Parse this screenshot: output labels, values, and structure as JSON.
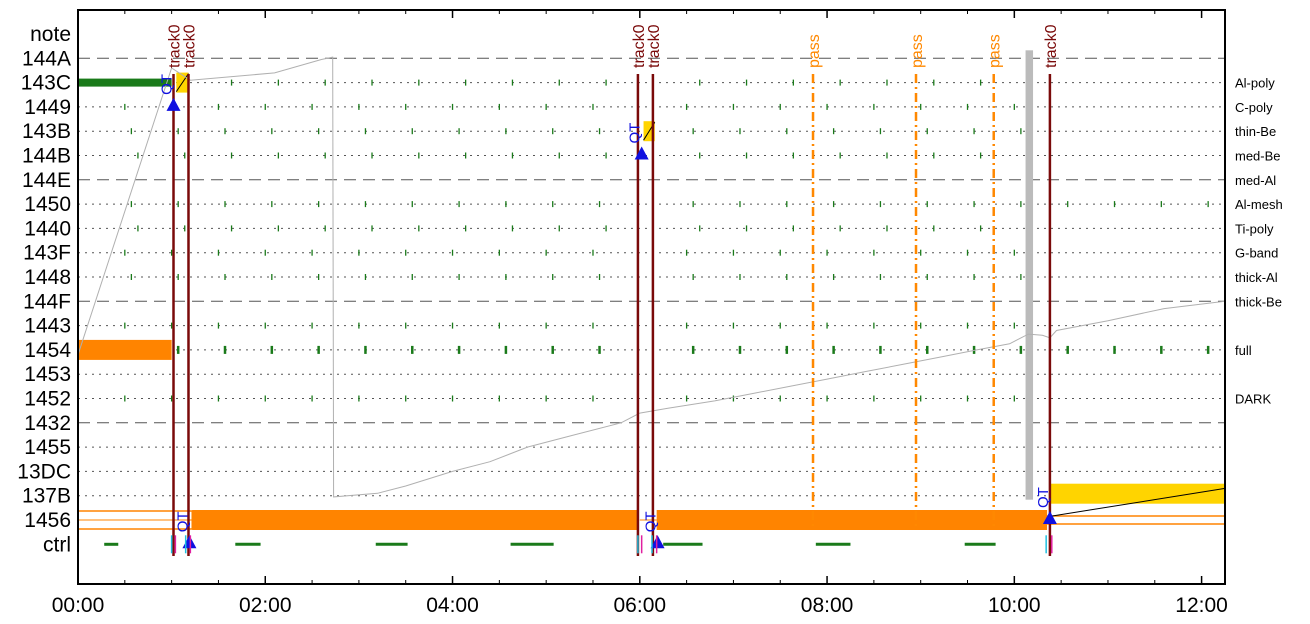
{
  "chart_data": {
    "type": "timeline",
    "x_ticks": [
      "00:00",
      "02:00",
      "04:00",
      "06:00",
      "08:00",
      "10:00",
      "12:00"
    ],
    "x_range_hours": [
      0,
      12.25
    ],
    "rows": [
      "note",
      "144A",
      "143C",
      "1449",
      "143B",
      "144B",
      "144E",
      "1450",
      "1440",
      "143F",
      "1448",
      "144F",
      "1443",
      "1454",
      "1453",
      "1452",
      "1432",
      "1455",
      "13DC",
      "137B",
      "1456",
      "ctrl"
    ],
    "dashed_rows": [
      "144A",
      "144E",
      "144F",
      "1432"
    ],
    "dotted_rows": [
      "143C",
      "1449",
      "143B",
      "144B",
      "1450",
      "1440",
      "143F",
      "1448",
      "1443",
      "1454",
      "1453",
      "1452",
      "1455",
      "13DC",
      "137B"
    ],
    "right_labels": [
      {
        "row": "143C",
        "text": "Al-poly"
      },
      {
        "row": "1449",
        "text": "C-poly"
      },
      {
        "row": "143B",
        "text": "thin-Be"
      },
      {
        "row": "144B",
        "text": "med-Be"
      },
      {
        "row": "144E",
        "text": "med-Al"
      },
      {
        "row": "1450",
        "text": "Al-mesh"
      },
      {
        "row": "1440",
        "text": "Ti-poly"
      },
      {
        "row": "143F",
        "text": "G-band"
      },
      {
        "row": "1448",
        "text": "thick-Al"
      },
      {
        "row": "144F",
        "text": "thick-Be"
      },
      {
        "row": "1454",
        "text": "full"
      },
      {
        "row": "1452",
        "text": "DARK"
      }
    ],
    "track_lines": [
      {
        "t": 1.02,
        "label": "track0"
      },
      {
        "t": 1.18,
        "label": "track0"
      },
      {
        "t": 5.98,
        "label": "track0"
      },
      {
        "t": 6.14,
        "label": "track0"
      },
      {
        "t": 10.38,
        "label": "track0"
      }
    ],
    "pass_lines": [
      {
        "t": 7.85,
        "label": "pass"
      },
      {
        "t": 8.95,
        "label": "pass"
      },
      {
        "t": 9.78,
        "label": "pass"
      }
    ],
    "qt_markers": [
      {
        "t": 1.02,
        "row": "1449",
        "label": "QT"
      },
      {
        "t": 1.19,
        "row": "ctrl",
        "label": "QT"
      },
      {
        "t": 6.02,
        "row": "144B",
        "label": "QT"
      },
      {
        "t": 6.19,
        "row": "ctrl",
        "label": "QT"
      },
      {
        "t": 10.38,
        "row": "1456",
        "label": "QT"
      }
    ],
    "orange_bars": [
      {
        "row": "1454",
        "start": 0.0,
        "end": 1.0
      },
      {
        "row": "1456",
        "start": 1.22,
        "end": 5.98
      },
      {
        "row": "1456",
        "start": 6.18,
        "end": 10.35
      }
    ],
    "orange_outline": {
      "row": "1456",
      "start": 0.0,
      "end": 1.22
    },
    "yellow_boxes": [
      {
        "row": "143C",
        "start": 1.05,
        "end": 1.18
      },
      {
        "row": "143B",
        "start": 6.04,
        "end": 6.16
      },
      {
        "row": "137B",
        "start": 10.38,
        "end": 12.25
      }
    ],
    "green_bar": {
      "row": "143C",
      "start": 0.0,
      "end": 1.0
    },
    "gray_band": {
      "start": 10.12,
      "end": 10.2
    },
    "ctrl_segments": [
      [
        0.28,
        0.43
      ],
      [
        1.68,
        1.95
      ],
      [
        3.18,
        3.52
      ],
      [
        4.62,
        5.08
      ],
      [
        6.25,
        6.67
      ],
      [
        7.88,
        8.25
      ],
      [
        9.47,
        9.8
      ]
    ],
    "ctrl_marks": [
      1.0,
      1.04,
      1.15,
      1.2,
      5.98,
      6.02,
      6.13,
      6.18,
      10.34,
      10.4
    ],
    "green_tick_rows": [
      "143C",
      "1449",
      "143B",
      "144B",
      "1450",
      "1440",
      "143F",
      "1448",
      "1443",
      "1454",
      "1452"
    ],
    "gray_trace": [
      [
        0.0,
        13.2
      ],
      [
        1.0,
        1.4
      ],
      [
        1.2,
        1.9
      ],
      [
        2.1,
        1.6
      ],
      [
        2.6,
        1.05
      ],
      [
        2.72,
        0.95
      ],
      [
        2.73,
        19.05
      ],
      [
        3.2,
        18.9
      ],
      [
        3.5,
        18.6
      ],
      [
        4.0,
        18.0
      ],
      [
        4.4,
        17.6
      ],
      [
        4.8,
        17.0
      ],
      [
        5.3,
        16.5
      ],
      [
        5.8,
        16.0
      ],
      [
        6.0,
        15.6
      ],
      [
        6.3,
        15.4
      ],
      [
        6.8,
        15.1
      ],
      [
        7.2,
        14.8
      ],
      [
        7.6,
        14.5
      ],
      [
        8.0,
        14.2
      ],
      [
        8.4,
        13.9
      ],
      [
        8.8,
        13.6
      ],
      [
        9.2,
        13.3
      ],
      [
        9.6,
        13.0
      ],
      [
        9.95,
        12.75
      ],
      [
        10.15,
        12.35
      ],
      [
        10.3,
        12.4
      ],
      [
        10.38,
        12.5
      ],
      [
        10.45,
        12.2
      ],
      [
        11.0,
        11.8
      ],
      [
        11.6,
        11.3
      ],
      [
        12.25,
        11.0
      ]
    ],
    "black_diagonal": {
      "from": [
        10.38,
        19.85
      ],
      "to": [
        12.25,
        18.7
      ]
    }
  },
  "colors": {
    "track": "#7a0a0a",
    "pass": "#ff8800",
    "orange": "#ff8400",
    "yellow": "#ffd400",
    "green": "#1a7a1a",
    "qt": "#1010e0",
    "gray_trace": "#b0b0b0",
    "gray_band": "#bbbbbb"
  }
}
